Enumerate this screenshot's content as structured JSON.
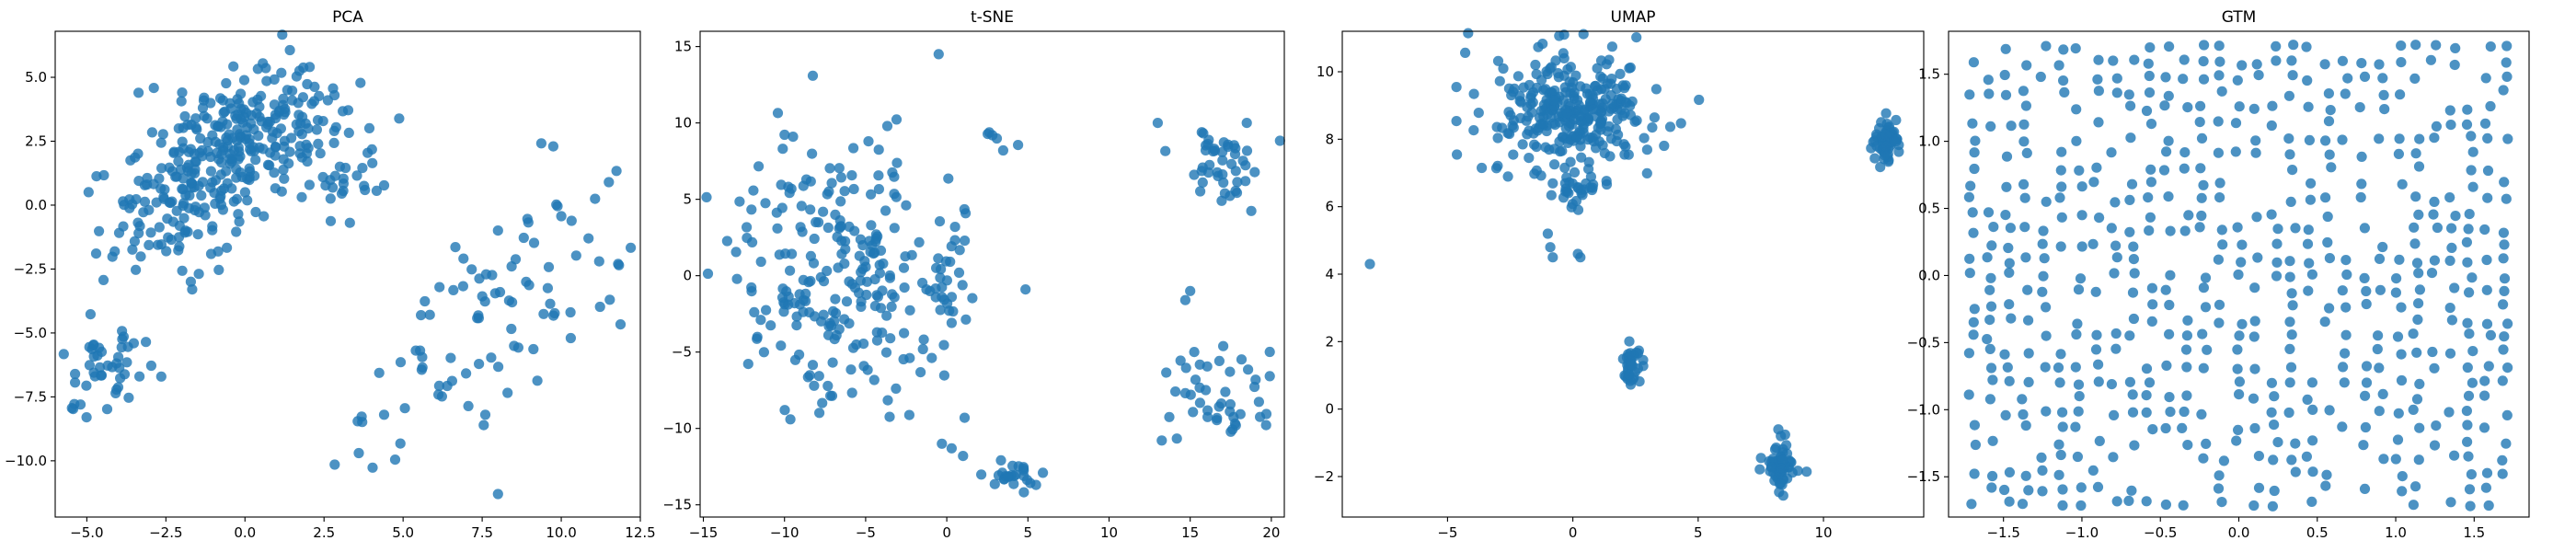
{
  "colors": {
    "marker": "#1f77b4",
    "axes": "#000000",
    "background": "#ffffff"
  },
  "chart_data": [
    {
      "type": "scatter",
      "title": "PCA",
      "xlabel": "",
      "ylabel": "",
      "xlim": [
        -6.0,
        12.5
      ],
      "ylim": [
        -12.2,
        6.8
      ],
      "xticks": [
        -5.0,
        -2.5,
        0.0,
        2.5,
        5.0,
        7.5,
        10.0,
        12.5
      ],
      "xtick_labels": [
        "−5.0",
        "−2.5",
        "0.0",
        "2.5",
        "5.0",
        "7.5",
        "10.0",
        "12.5"
      ],
      "yticks": [
        -10.0,
        -7.5,
        -5.0,
        -2.5,
        0.0,
        2.5,
        5.0
      ],
      "ytick_labels": [
        "−10.0",
        "−7.5",
        "−5.0",
        "−2.5",
        "0.0",
        "2.5",
        "5.0"
      ],
      "grid": false,
      "clusters": [
        {
          "cx": -1.2,
          "cy": 1.2,
          "sx": 1.5,
          "sy": 1.9,
          "n": 260,
          "rho": 0.55
        },
        {
          "cx": -4.3,
          "cy": -6.2,
          "sx": 0.6,
          "sy": 1.0,
          "n": 45,
          "rho": 0.3
        },
        {
          "cx": 0.6,
          "cy": 3.6,
          "sx": 1.1,
          "sy": 1.4,
          "n": 70,
          "rho": 0.0
        },
        {
          "cx": 2.6,
          "cy": 1.5,
          "sx": 1.0,
          "sy": 1.5,
          "n": 45,
          "rho": 0.0
        },
        {
          "cx": 8.3,
          "cy": -3.3,
          "sx": 1.6,
          "sy": 2.3,
          "n": 75,
          "rho": 0.45
        },
        {
          "cx": 4.5,
          "cy": -8.5,
          "sx": 1.5,
          "sy": 1.6,
          "n": 12,
          "rho": 0.0
        }
      ],
      "series": [
        {
          "x": [
            8.0,
            11.8,
            11.2,
            10.3,
            -5.2,
            3.6,
            7.6
          ],
          "y": [
            -11.3,
            -2.3,
            -2.2,
            -5.2,
            -7.8,
            -9.7,
            -8.2
          ]
        }
      ]
    },
    {
      "type": "scatter",
      "title": "t-SNE",
      "xlabel": "",
      "ylabel": "",
      "xlim": [
        -15.2,
        20.8
      ],
      "ylim": [
        -15.8,
        16.0
      ],
      "xticks": [
        -15,
        -10,
        -5,
        0,
        5,
        10,
        15,
        20
      ],
      "xtick_labels": [
        "−15",
        "−10",
        "−5",
        "0",
        "5",
        "10",
        "15",
        "20"
      ],
      "yticks": [
        -15,
        -10,
        -5,
        0,
        5,
        10,
        15
      ],
      "ytick_labels": [
        "−15",
        "−10",
        "−5",
        "0",
        "5",
        "10",
        "15"
      ],
      "grid": false,
      "clusters": [
        {
          "cx": -6.5,
          "cy": 0.0,
          "sx": 3.8,
          "sy": 4.6,
          "n": 240,
          "rho": 0.0
        },
        {
          "cx": 17.0,
          "cy": 7.5,
          "sx": 1.2,
          "sy": 1.4,
          "n": 45,
          "rho": 0.0
        },
        {
          "cx": 16.5,
          "cy": -7.8,
          "sx": 1.9,
          "sy": 1.6,
          "n": 45,
          "rho": 0.0
        },
        {
          "cx": 4.3,
          "cy": -13.2,
          "sx": 0.9,
          "sy": 0.6,
          "n": 25,
          "rho": 0.0
        },
        {
          "cx": 0.0,
          "cy": 0.0,
          "sx": 0.6,
          "sy": 2.0,
          "n": 22,
          "rho": 0.0
        },
        {
          "cx": 2.8,
          "cy": 8.8,
          "sx": 0.6,
          "sy": 0.6,
          "n": 6,
          "rho": 0.0
        }
      ],
      "series": [
        {
          "x": [
            -0.5,
            13.0,
            15.0,
            14.7,
            1.1,
            -0.3,
            0.3,
            1.0
          ],
          "y": [
            14.5,
            10.0,
            -1.0,
            -1.6,
            -9.3,
            -11.0,
            -11.3,
            -11.8
          ]
        }
      ]
    },
    {
      "type": "scatter",
      "title": "UMAP",
      "xlabel": "",
      "ylabel": "",
      "xlim": [
        -9.2,
        14.0
      ],
      "ylim": [
        -3.2,
        11.2
      ],
      "xticks": [
        -5,
        0,
        5,
        10
      ],
      "xtick_labels": [
        "−5",
        "0",
        "5",
        "10"
      ],
      "yticks": [
        -2,
        0,
        2,
        4,
        6,
        8,
        10
      ],
      "ytick_labels": [
        "−2",
        "0",
        "2",
        "4",
        "6",
        "8",
        "10"
      ],
      "grid": false,
      "clusters": [
        {
          "cx": 0.0,
          "cy": 8.8,
          "sx": 1.6,
          "sy": 0.9,
          "n": 300,
          "rho": 0.0
        },
        {
          "cx": 12.5,
          "cy": 7.9,
          "sx": 0.25,
          "sy": 0.35,
          "n": 60,
          "rho": 0.0
        },
        {
          "cx": 8.3,
          "cy": -1.7,
          "sx": 0.35,
          "sy": 0.35,
          "n": 55,
          "rho": 0.0
        },
        {
          "cx": 2.4,
          "cy": 1.3,
          "sx": 0.25,
          "sy": 0.3,
          "n": 35,
          "rho": 0.0
        },
        {
          "cx": 0.1,
          "cy": 6.6,
          "sx": 0.5,
          "sy": 0.25,
          "n": 25,
          "rho": 0.0
        }
      ],
      "series": [
        {
          "x": [
            -8.1,
            -1.0,
            -0.9,
            -0.8,
            0.2,
            0.3,
            8.2,
            8.3
          ],
          "y": [
            4.3,
            5.2,
            4.8,
            4.5,
            4.6,
            4.5,
            -0.6,
            -0.8
          ]
        }
      ]
    },
    {
      "type": "scatter",
      "title": "GTM",
      "xlabel": "",
      "ylabel": "",
      "xlim": [
        -1.85,
        1.85
      ],
      "ylim": [
        -1.8,
        1.82
      ],
      "xticks": [
        -1.5,
        -1.0,
        -0.5,
        0.0,
        0.5,
        1.0,
        1.5
      ],
      "xtick_labels": [
        "−1.5",
        "−1.0",
        "−0.5",
        "0.0",
        "0.5",
        "1.0",
        "1.5"
      ],
      "yticks": [
        -1.5,
        -1.0,
        -0.5,
        0.0,
        0.5,
        1.0,
        1.5
      ],
      "ytick_labels": [
        "−1.5",
        "−1.0",
        "−0.5",
        "0.0",
        "0.5",
        "1.0",
        "1.5"
      ],
      "grid": false,
      "grid_sampled": {
        "x_range": [
          -1.7,
          1.7
        ],
        "y_range": [
          -1.7,
          1.7
        ],
        "nodes": 31,
        "n": 560
      },
      "series": []
    }
  ]
}
